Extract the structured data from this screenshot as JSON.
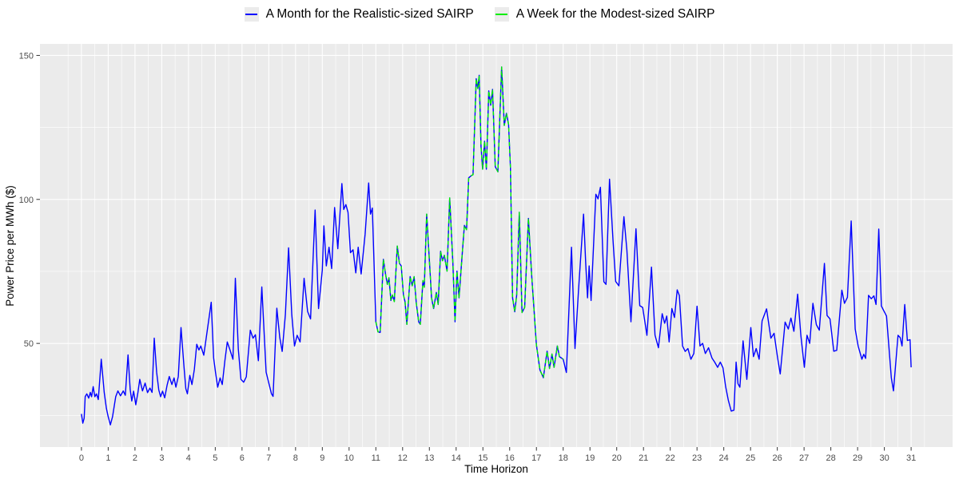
{
  "chart_data": {
    "type": "line",
    "title": "",
    "xlabel": "Time Horizon",
    "ylabel": "Power Price per MWh ($)",
    "legend_position": "top",
    "grid": true,
    "panel_bg": "#EBEBEB",
    "grid_color": "#FFFFFF",
    "tick_color": "#333333",
    "tick_label_color": "#4D4D4D",
    "xlim": [
      -1.55,
      32.55
    ],
    "ylim": [
      14,
      154
    ],
    "x_ticks": [
      0,
      1,
      2,
      3,
      4,
      5,
      6,
      7,
      8,
      9,
      10,
      11,
      12,
      13,
      14,
      15,
      16,
      17,
      18,
      19,
      20,
      21,
      22,
      23,
      24,
      25,
      26,
      27,
      28,
      29,
      30,
      31
    ],
    "x_minor": {
      "from": -0.5,
      "to": 31.5,
      "step": 1
    },
    "y_ticks": [
      50,
      100,
      150
    ],
    "y_minor": [
      25,
      75,
      125
    ],
    "series": [
      {
        "name": "A Month for the Realistic-sized SAIRP",
        "color": "#0000FF",
        "style": "solid",
        "points": [
          [
            0,
            25.5
          ],
          [
            0.05,
            22.3
          ],
          [
            0.1,
            24
          ],
          [
            0.14,
            31.5
          ],
          [
            0.2,
            32.5
          ],
          [
            0.27,
            31
          ],
          [
            0.33,
            33
          ],
          [
            0.38,
            31.5
          ],
          [
            0.44,
            35
          ],
          [
            0.5,
            31.5
          ],
          [
            0.56,
            32.5
          ],
          [
            0.63,
            30.5
          ],
          [
            0.74,
            44.5
          ],
          [
            0.85,
            33
          ],
          [
            0.93,
            27.5
          ],
          [
            1.0,
            24.5
          ],
          [
            1.08,
            21.7
          ],
          [
            1.16,
            24.5
          ],
          [
            1.28,
            31.5
          ],
          [
            1.36,
            33.5
          ],
          [
            1.46,
            31.8
          ],
          [
            1.56,
            33.5
          ],
          [
            1.64,
            32
          ],
          [
            1.74,
            46
          ],
          [
            1.82,
            34
          ],
          [
            1.88,
            30
          ],
          [
            1.95,
            33.4
          ],
          [
            2.03,
            28.7
          ],
          [
            2.11,
            33
          ],
          [
            2.18,
            37.5
          ],
          [
            2.28,
            33.5
          ],
          [
            2.38,
            36.2
          ],
          [
            2.47,
            32.9
          ],
          [
            2.56,
            34.5
          ],
          [
            2.64,
            33
          ],
          [
            2.72,
            51.8
          ],
          [
            2.81,
            40
          ],
          [
            2.89,
            33.8
          ],
          [
            2.96,
            31.5
          ],
          [
            3.03,
            33.4
          ],
          [
            3.11,
            31.1
          ],
          [
            3.2,
            35.5
          ],
          [
            3.28,
            38.5
          ],
          [
            3.38,
            35.7
          ],
          [
            3.46,
            38
          ],
          [
            3.53,
            34.8
          ],
          [
            3.62,
            38.5
          ],
          [
            3.72,
            55.5
          ],
          [
            3.83,
            42
          ],
          [
            3.9,
            34.3
          ],
          [
            3.96,
            32.5
          ],
          [
            4.05,
            38.9
          ],
          [
            4.13,
            35.7
          ],
          [
            4.22,
            41
          ],
          [
            4.31,
            49.7
          ],
          [
            4.39,
            47.7
          ],
          [
            4.46,
            49.1
          ],
          [
            4.57,
            45.9
          ],
          [
            4.71,
            55
          ],
          [
            4.85,
            64.3
          ],
          [
            4.94,
            45
          ],
          [
            5.01,
            39.9
          ],
          [
            5.09,
            34.8
          ],
          [
            5.18,
            38
          ],
          [
            5.26,
            35.7
          ],
          [
            5.36,
            44
          ],
          [
            5.45,
            50.5
          ],
          [
            5.55,
            47.7
          ],
          [
            5.66,
            44.5
          ],
          [
            5.75,
            72.6
          ],
          [
            5.86,
            48
          ],
          [
            5.96,
            37.5
          ],
          [
            6.06,
            36.5
          ],
          [
            6.16,
            38.4
          ],
          [
            6.31,
            54.6
          ],
          [
            6.41,
            51.8
          ],
          [
            6.5,
            53
          ],
          [
            6.61,
            44
          ],
          [
            6.74,
            69.6
          ],
          [
            6.9,
            40
          ],
          [
            7.1,
            32.5
          ],
          [
            7.16,
            31.6
          ],
          [
            7.3,
            62.2
          ],
          [
            7.41,
            52
          ],
          [
            7.5,
            47.2
          ],
          [
            7.62,
            60
          ],
          [
            7.74,
            83.2
          ],
          [
            7.86,
            60
          ],
          [
            7.96,
            49.1
          ],
          [
            8.06,
            52.8
          ],
          [
            8.17,
            50.5
          ],
          [
            8.32,
            72.6
          ],
          [
            8.45,
            61.1
          ],
          [
            8.56,
            58.5
          ],
          [
            8.73,
            96.3
          ],
          [
            8.86,
            62.1
          ],
          [
            9.0,
            75.5
          ],
          [
            9.06,
            90.8
          ],
          [
            9.15,
            76.9
          ],
          [
            9.25,
            83.4
          ],
          [
            9.35,
            76
          ],
          [
            9.46,
            97.2
          ],
          [
            9.58,
            82.9
          ],
          [
            9.73,
            105.5
          ],
          [
            9.8,
            96.5
          ],
          [
            9.88,
            98.2
          ],
          [
            9.96,
            95.5
          ],
          [
            10.05,
            81.5
          ],
          [
            10.15,
            82.5
          ],
          [
            10.25,
            74.5
          ],
          [
            10.34,
            83.4
          ],
          [
            10.45,
            74.1
          ],
          [
            10.6,
            88
          ],
          [
            10.73,
            105.7
          ],
          [
            10.8,
            94.9
          ],
          [
            10.87,
            97
          ],
          [
            11.0,
            57.5
          ],
          [
            11.08,
            54
          ],
          [
            11.16,
            53.8
          ],
          [
            11.28,
            79.2
          ],
          [
            11.36,
            74.1
          ],
          [
            11.43,
            70.5
          ],
          [
            11.49,
            72.8
          ],
          [
            11.56,
            64.9
          ],
          [
            11.62,
            66.8
          ],
          [
            11.69,
            64.5
          ],
          [
            11.8,
            83.8
          ],
          [
            11.88,
            77.8
          ],
          [
            11.95,
            76.9
          ],
          [
            12.03,
            66.8
          ],
          [
            12.09,
            64.5
          ],
          [
            12.16,
            56.6
          ],
          [
            12.28,
            73.2
          ],
          [
            12.36,
            70
          ],
          [
            12.43,
            73.2
          ],
          [
            12.51,
            64
          ],
          [
            12.6,
            57.5
          ],
          [
            12.66,
            56.6
          ],
          [
            12.76,
            71.8
          ],
          [
            12.81,
            69.5
          ],
          [
            12.9,
            94.9
          ],
          [
            13.0,
            78.7
          ],
          [
            13.08,
            65.8
          ],
          [
            13.16,
            62.1
          ],
          [
            13.26,
            67.7
          ],
          [
            13.33,
            63.5
          ],
          [
            13.42,
            82
          ],
          [
            13.49,
            78.7
          ],
          [
            13.56,
            80.6
          ],
          [
            13.66,
            75.1
          ],
          [
            13.76,
            100.5
          ],
          [
            13.88,
            77.8
          ],
          [
            13.96,
            57.5
          ],
          [
            14.03,
            75.1
          ],
          [
            14.11,
            65.8
          ],
          [
            14.22,
            80
          ],
          [
            14.31,
            91
          ],
          [
            14.39,
            89.5
          ],
          [
            14.47,
            107.5
          ],
          [
            14.56,
            108.2
          ],
          [
            14.63,
            108.6
          ],
          [
            14.75,
            141.9
          ],
          [
            14.81,
            138.5
          ],
          [
            14.86,
            143.1
          ],
          [
            14.93,
            118.4
          ],
          [
            14.99,
            110.5
          ],
          [
            15.06,
            120.2
          ],
          [
            15.13,
            110.5
          ],
          [
            15.22,
            137.7
          ],
          [
            15.29,
            132.7
          ],
          [
            15.36,
            138.2
          ],
          [
            15.46,
            111.4
          ],
          [
            15.56,
            109.6
          ],
          [
            15.7,
            146
          ],
          [
            15.8,
            125.7
          ],
          [
            15.88,
            129.9
          ],
          [
            15.96,
            126
          ],
          [
            16.03,
            111
          ],
          [
            16.11,
            65.8
          ],
          [
            16.19,
            61
          ],
          [
            16.26,
            66.7
          ],
          [
            16.36,
            95.5
          ],
          [
            16.46,
            60.7
          ],
          [
            16.56,
            62.5
          ],
          [
            16.7,
            93.4
          ],
          [
            16.82,
            74
          ],
          [
            17.0,
            49.5
          ],
          [
            17.13,
            40.8
          ],
          [
            17.26,
            38.1
          ],
          [
            17.4,
            47.3
          ],
          [
            17.49,
            41.3
          ],
          [
            17.58,
            46.3
          ],
          [
            17.66,
            41.7
          ],
          [
            17.78,
            49.1
          ],
          [
            17.86,
            45.4
          ],
          [
            18.0,
            44.5
          ],
          [
            18.12,
            39.9
          ],
          [
            18.31,
            83.4
          ],
          [
            18.44,
            48.2
          ],
          [
            18.57,
            68
          ],
          [
            18.76,
            94.9
          ],
          [
            18.84,
            77.8
          ],
          [
            18.91,
            65.8
          ],
          [
            18.97,
            76.9
          ],
          [
            19.04,
            64.9
          ],
          [
            19.22,
            101.8
          ],
          [
            19.3,
            100.2
          ],
          [
            19.39,
            104.2
          ],
          [
            19.52,
            71.4
          ],
          [
            19.6,
            70.5
          ],
          [
            19.73,
            107
          ],
          [
            19.86,
            86.1
          ],
          [
            19.96,
            71.5
          ],
          [
            20.08,
            70
          ],
          [
            20.27,
            94
          ],
          [
            20.38,
            82.5
          ],
          [
            20.53,
            57.5
          ],
          [
            20.72,
            89.8
          ],
          [
            20.86,
            63.1
          ],
          [
            20.97,
            62.5
          ],
          [
            21.13,
            52.8
          ],
          [
            21.3,
            76.5
          ],
          [
            21.43,
            52.9
          ],
          [
            21.56,
            48.5
          ],
          [
            21.7,
            60.3
          ],
          [
            21.79,
            57
          ],
          [
            21.87,
            59.5
          ],
          [
            21.96,
            50.5
          ],
          [
            22.06,
            62.1
          ],
          [
            22.16,
            59
          ],
          [
            22.26,
            68.6
          ],
          [
            22.34,
            66.6
          ],
          [
            22.46,
            49.1
          ],
          [
            22.56,
            47.2
          ],
          [
            22.66,
            48.2
          ],
          [
            22.77,
            44.5
          ],
          [
            22.88,
            46.5
          ],
          [
            23.0,
            62.9
          ],
          [
            23.11,
            49.1
          ],
          [
            23.21,
            50
          ],
          [
            23.31,
            46.5
          ],
          [
            23.43,
            48.5
          ],
          [
            23.56,
            44.9
          ],
          [
            23.66,
            43.5
          ],
          [
            23.77,
            41.7
          ],
          [
            23.87,
            43.5
          ],
          [
            23.97,
            41.5
          ],
          [
            24.07,
            35
          ],
          [
            24.17,
            30.2
          ],
          [
            24.28,
            26.5
          ],
          [
            24.38,
            26.8
          ],
          [
            24.46,
            43.5
          ],
          [
            24.53,
            36
          ],
          [
            24.6,
            34.8
          ],
          [
            24.72,
            50.9
          ],
          [
            24.86,
            37.5
          ],
          [
            25.01,
            55.5
          ],
          [
            25.11,
            45.4
          ],
          [
            25.21,
            48.2
          ],
          [
            25.32,
            44.5
          ],
          [
            25.43,
            57.8
          ],
          [
            25.6,
            62
          ],
          [
            25.76,
            51.8
          ],
          [
            25.88,
            53.5
          ],
          [
            26.01,
            45
          ],
          [
            26.11,
            39.4
          ],
          [
            26.29,
            57.4
          ],
          [
            26.41,
            55
          ],
          [
            26.51,
            58.8
          ],
          [
            26.62,
            54.2
          ],
          [
            26.76,
            67.1
          ],
          [
            26.88,
            52.8
          ],
          [
            27.01,
            41.7
          ],
          [
            27.11,
            52.8
          ],
          [
            27.21,
            50
          ],
          [
            27.33,
            63.9
          ],
          [
            27.46,
            56.5
          ],
          [
            27.57,
            54.6
          ],
          [
            27.76,
            77.8
          ],
          [
            27.86,
            59.7
          ],
          [
            27.97,
            58.5
          ],
          [
            28.11,
            47.3
          ],
          [
            28.22,
            47.6
          ],
          [
            28.41,
            68.5
          ],
          [
            28.51,
            63.9
          ],
          [
            28.62,
            66
          ],
          [
            28.76,
            92.5
          ],
          [
            28.91,
            55
          ],
          [
            29.02,
            49.1
          ],
          [
            29.16,
            44.5
          ],
          [
            29.23,
            46.2
          ],
          [
            29.3,
            44.8
          ],
          [
            29.41,
            66.7
          ],
          [
            29.51,
            65.5
          ],
          [
            29.61,
            66.5
          ],
          [
            29.69,
            63.5
          ],
          [
            29.79,
            89.7
          ],
          [
            29.89,
            63
          ],
          [
            29.97,
            61.5
          ],
          [
            30.08,
            59.5
          ],
          [
            30.26,
            38.1
          ],
          [
            30.34,
            33.5
          ],
          [
            30.51,
            52.8
          ],
          [
            30.59,
            52
          ],
          [
            30.66,
            49.1
          ],
          [
            30.76,
            63.5
          ],
          [
            30.86,
            51
          ],
          [
            30.96,
            51.3
          ],
          [
            31.0,
            41.7
          ]
        ]
      },
      {
        "name": "A Week for the Modest-sized SAIRP",
        "color": "#00EE00",
        "style": "dashed",
        "overlaps_series": 0,
        "x_range": [
          11,
          18
        ]
      }
    ]
  }
}
